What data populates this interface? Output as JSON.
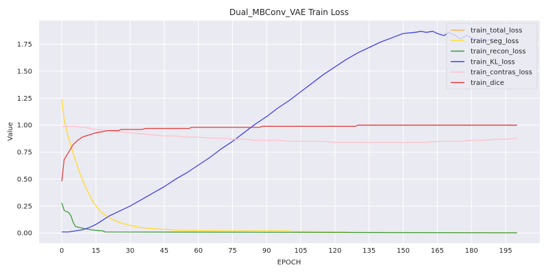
{
  "chart_data": {
    "type": "line",
    "title": "Dual_MBConv_VAE Train Loss",
    "xlabel": "EPOCH",
    "ylabel": "Value",
    "xlim": [
      -10,
      210
    ],
    "ylim": [
      -0.094,
      1.97
    ],
    "xticks": [
      0,
      15,
      30,
      45,
      60,
      75,
      90,
      105,
      120,
      135,
      150,
      165,
      180,
      195
    ],
    "yticks": [
      0.0,
      0.25,
      0.5,
      0.75,
      1.0,
      1.25,
      1.5,
      1.75
    ],
    "ytick_labels": [
      "0.00",
      "0.25",
      "0.50",
      "0.75",
      "1.00",
      "1.25",
      "1.50",
      "1.75"
    ],
    "grid": true,
    "legend_position": "top-right",
    "series": [
      {
        "name": "train_total_loss",
        "color": "#ffb347",
        "points": [
          [
            0,
            1.24
          ],
          [
            1,
            1.05
          ],
          [
            3,
            0.88
          ],
          [
            5,
            0.74
          ],
          [
            8,
            0.55
          ],
          [
            11,
            0.4
          ],
          [
            14,
            0.28
          ],
          [
            17,
            0.2
          ],
          [
            20,
            0.15
          ],
          [
            25,
            0.1
          ],
          [
            30,
            0.07
          ],
          [
            35,
            0.05
          ],
          [
            40,
            0.04
          ],
          [
            48,
            0.03
          ],
          [
            50,
            0.025
          ],
          [
            75,
            0.02
          ],
          [
            100,
            0.02
          ],
          [
            101,
            0.015
          ],
          [
            126,
            0.01
          ],
          [
            127,
            0.004
          ],
          [
            200,
            0.002
          ]
        ]
      },
      {
        "name": "train_seg_loss",
        "color": "#ffe135",
        "points": [
          [
            0,
            1.24
          ],
          [
            1,
            1.05
          ],
          [
            3,
            0.88
          ],
          [
            5,
            0.74
          ],
          [
            8,
            0.55
          ],
          [
            11,
            0.4
          ],
          [
            14,
            0.28
          ],
          [
            17,
            0.2
          ],
          [
            20,
            0.15
          ],
          [
            25,
            0.1
          ],
          [
            30,
            0.07
          ],
          [
            35,
            0.05
          ],
          [
            40,
            0.04
          ],
          [
            48,
            0.03
          ],
          [
            50,
            0.025
          ],
          [
            75,
            0.02
          ],
          [
            100,
            0.02
          ],
          [
            101,
            0.015
          ],
          [
            126,
            0.01
          ],
          [
            127,
            0.004
          ],
          [
            200,
            0.002
          ]
        ]
      },
      {
        "name": "train_recon_loss",
        "color": "#3a9a3a",
        "points": [
          [
            0,
            0.28
          ],
          [
            1,
            0.21
          ],
          [
            3,
            0.19
          ],
          [
            4,
            0.16
          ],
          [
            5,
            0.1
          ],
          [
            6,
            0.06
          ],
          [
            8,
            0.05
          ],
          [
            10,
            0.04
          ],
          [
            13,
            0.03
          ],
          [
            15,
            0.025
          ],
          [
            18,
            0.02
          ],
          [
            19,
            0.01
          ],
          [
            200,
            0.002
          ]
        ]
      },
      {
        "name": "train_KL_loss",
        "color": "#4040e8",
        "points": [
          [
            0,
            0.01
          ],
          [
            3,
            0.01
          ],
          [
            6,
            0.02
          ],
          [
            9,
            0.03
          ],
          [
            12,
            0.05
          ],
          [
            15,
            0.08
          ],
          [
            18,
            0.12
          ],
          [
            21,
            0.16
          ],
          [
            25,
            0.2
          ],
          [
            30,
            0.25
          ],
          [
            35,
            0.31
          ],
          [
            40,
            0.37
          ],
          [
            45,
            0.43
          ],
          [
            50,
            0.5
          ],
          [
            55,
            0.56
          ],
          [
            60,
            0.63
          ],
          [
            65,
            0.7
          ],
          [
            70,
            0.78
          ],
          [
            75,
            0.85
          ],
          [
            80,
            0.93
          ],
          [
            85,
            1.01
          ],
          [
            90,
            1.08
          ],
          [
            95,
            1.16
          ],
          [
            100,
            1.23
          ],
          [
            105,
            1.31
          ],
          [
            110,
            1.39
          ],
          [
            115,
            1.47
          ],
          [
            120,
            1.54
          ],
          [
            125,
            1.61
          ],
          [
            130,
            1.67
          ],
          [
            135,
            1.72
          ],
          [
            140,
            1.77
          ],
          [
            145,
            1.81
          ],
          [
            150,
            1.85
          ],
          [
            155,
            1.86
          ],
          [
            158,
            1.87
          ],
          [
            160,
            1.86
          ],
          [
            163,
            1.87
          ],
          [
            165,
            1.85
          ],
          [
            168,
            1.83
          ],
          [
            170,
            1.86
          ],
          [
            173,
            1.83
          ],
          [
            175,
            1.8
          ],
          [
            178,
            1.83
          ],
          [
            180,
            1.81
          ],
          [
            185,
            1.78
          ],
          [
            190,
            1.8
          ]
        ]
      },
      {
        "name": "train_contras_loss",
        "color": "#ffc0cb",
        "points": [
          [
            0,
            0.99
          ],
          [
            5,
            0.99
          ],
          [
            10,
            0.98
          ],
          [
            15,
            0.96
          ],
          [
            20,
            0.95
          ],
          [
            25,
            0.94
          ],
          [
            30,
            0.93
          ],
          [
            35,
            0.92
          ],
          [
            40,
            0.91
          ],
          [
            45,
            0.9
          ],
          [
            50,
            0.9
          ],
          [
            55,
            0.89
          ],
          [
            60,
            0.89
          ],
          [
            65,
            0.88
          ],
          [
            70,
            0.88
          ],
          [
            75,
            0.87
          ],
          [
            80,
            0.87
          ],
          [
            85,
            0.86
          ],
          [
            90,
            0.86
          ],
          [
            95,
            0.86
          ],
          [
            100,
            0.85
          ],
          [
            110,
            0.85
          ],
          [
            115,
            0.85
          ],
          [
            120,
            0.84
          ],
          [
            130,
            0.84
          ],
          [
            140,
            0.84
          ],
          [
            150,
            0.84
          ],
          [
            160,
            0.84
          ],
          [
            165,
            0.85
          ],
          [
            170,
            0.85
          ],
          [
            175,
            0.85
          ],
          [
            180,
            0.86
          ],
          [
            185,
            0.86
          ],
          [
            190,
            0.87
          ],
          [
            195,
            0.87
          ],
          [
            200,
            0.88
          ]
        ]
      },
      {
        "name": "train_dice",
        "color": "#e83a3a",
        "points": [
          [
            0,
            0.48
          ],
          [
            1,
            0.68
          ],
          [
            3,
            0.75
          ],
          [
            5,
            0.82
          ],
          [
            7,
            0.86
          ],
          [
            9,
            0.89
          ],
          [
            12,
            0.91
          ],
          [
            15,
            0.93
          ],
          [
            18,
            0.94
          ],
          [
            20,
            0.95
          ],
          [
            25,
            0.95
          ],
          [
            26,
            0.96
          ],
          [
            35,
            0.96
          ],
          [
            37,
            0.97
          ],
          [
            56,
            0.97
          ],
          [
            57,
            0.98
          ],
          [
            87,
            0.98
          ],
          [
            88,
            0.99
          ],
          [
            129,
            0.99
          ],
          [
            130,
            1.0
          ],
          [
            200,
            1.0
          ]
        ]
      }
    ]
  }
}
